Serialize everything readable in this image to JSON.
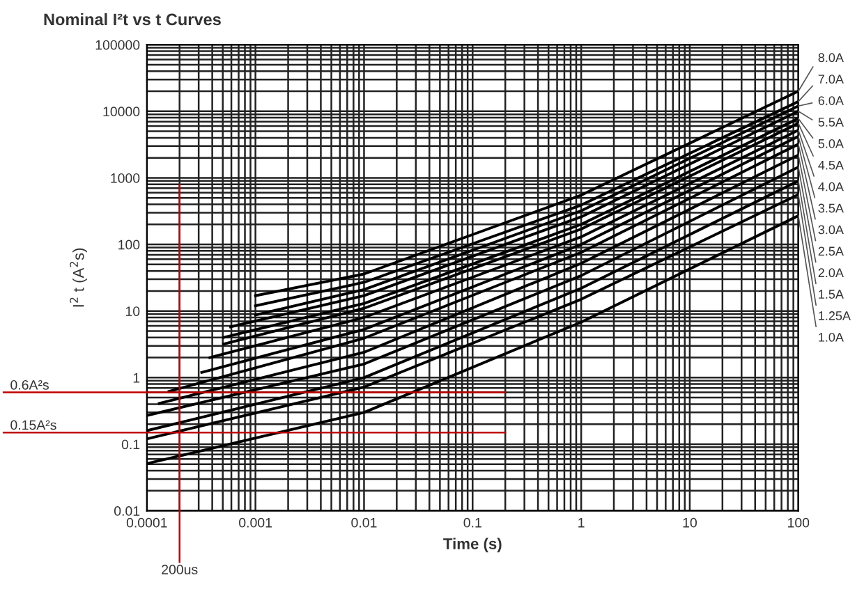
{
  "chart_data": {
    "type": "line",
    "title": "Nominal I²t vs t Curves",
    "xlabel": "Time (s)",
    "ylabel": "I$^{2}$ t (A$^{2}$s)",
    "log": "xy",
    "grid": true,
    "legend": false,
    "marker": "none",
    "line_style": "solid",
    "xlim": [
      0.0001,
      100
    ],
    "ylim": [
      0.01,
      100000
    ],
    "xticks": [
      {
        "value": 0.0001,
        "label": "0.0001"
      },
      {
        "value": 0.001,
        "label": "0.001"
      },
      {
        "value": 0.01,
        "label": "0.01"
      },
      {
        "value": 0.1,
        "label": "0.1"
      },
      1,
      10,
      100
    ],
    "yticks": [
      {
        "value": 0.01,
        "label": "0.01"
      },
      {
        "value": 0.1,
        "label": "0.1"
      },
      1,
      10,
      100,
      1000,
      10000,
      100000
    ],
    "series": [
      {
        "name": "8.0A",
        "color": "#000000",
        "x": [
          0.001,
          0.01,
          1,
          100
        ],
        "values": [
          17,
          36,
          550,
          20000
        ]
      },
      {
        "name": "7.0A",
        "color": "#000000",
        "x": [
          0.001,
          0.01,
          1,
          100
        ],
        "values": [
          12,
          27,
          390,
          14000
        ]
      },
      {
        "name": "6.0A",
        "color": "#000000",
        "x": [
          0.001,
          0.01,
          1,
          100
        ],
        "values": [
          8.7,
          21,
          320,
          12000
        ]
      },
      {
        "name": "5.5A",
        "color": "#000000",
        "x": [
          0.00059,
          0.01,
          1,
          100
        ],
        "values": [
          5.8,
          17,
          260,
          10000
        ]
      },
      {
        "name": "5.0A",
        "color": "#000000",
        "x": [
          0.00051,
          0.01,
          1,
          100
        ],
        "values": [
          4,
          13,
          200,
          7800
        ]
      },
      {
        "name": "4.5A",
        "color": "#000000",
        "x": [
          0.00051,
          0.01,
          1,
          100
        ],
        "values": [
          3.2,
          11,
          170,
          6600
        ]
      },
      {
        "name": "4.0A",
        "color": "#000000",
        "x": [
          0.00038,
          0.01,
          1,
          100
        ],
        "values": [
          2,
          8,
          130,
          5200
        ]
      },
      {
        "name": "3.5A",
        "color": "#000000",
        "x": [
          0.00032,
          0.01,
          1,
          100
        ],
        "values": [
          1.2,
          5.3,
          100,
          4200
        ]
      },
      {
        "name": "3.0A",
        "color": "#000000",
        "x": [
          0.00016,
          0.01,
          1,
          100
        ],
        "values": [
          0.62,
          3.9,
          76,
          3200
        ]
      },
      {
        "name": "2.5A",
        "color": "#000000",
        "x": [
          0.00013,
          0.01,
          1,
          100
        ],
        "values": [
          0.41,
          2.4,
          52,
          2200
        ]
      },
      {
        "name": "2.0A",
        "color": "#000000",
        "x": [
          0.0001,
          0.01,
          1,
          100
        ],
        "values": [
          0.27,
          1.6,
          34,
          1450
        ]
      },
      {
        "name": "1.5A",
        "color": "#000000",
        "x": [
          0.0001,
          0.01,
          1,
          100
        ],
        "values": [
          0.16,
          1,
          22,
          900
        ]
      },
      {
        "name": "1.25A",
        "color": "#000000",
        "x": [
          0.0001,
          0.01,
          1,
          100
        ],
        "values": [
          0.12,
          0.72,
          15,
          560
        ]
      },
      {
        "name": "1.0A",
        "color": "#000000",
        "x": [
          0.0001,
          0.01,
          1,
          100
        ],
        "values": [
          0.051,
          0.3,
          6.8,
          270
        ]
      }
    ],
    "ref_lines": [
      {
        "axis": "y",
        "value": 0.6,
        "label": "0.6A²s",
        "color": "#c00000"
      },
      {
        "axis": "y",
        "value": 0.15,
        "label": "0.15A²s",
        "color": "#c00000"
      },
      {
        "axis": "x",
        "value": 0.0002,
        "label": "200us",
        "color": "#c00000"
      }
    ]
  }
}
